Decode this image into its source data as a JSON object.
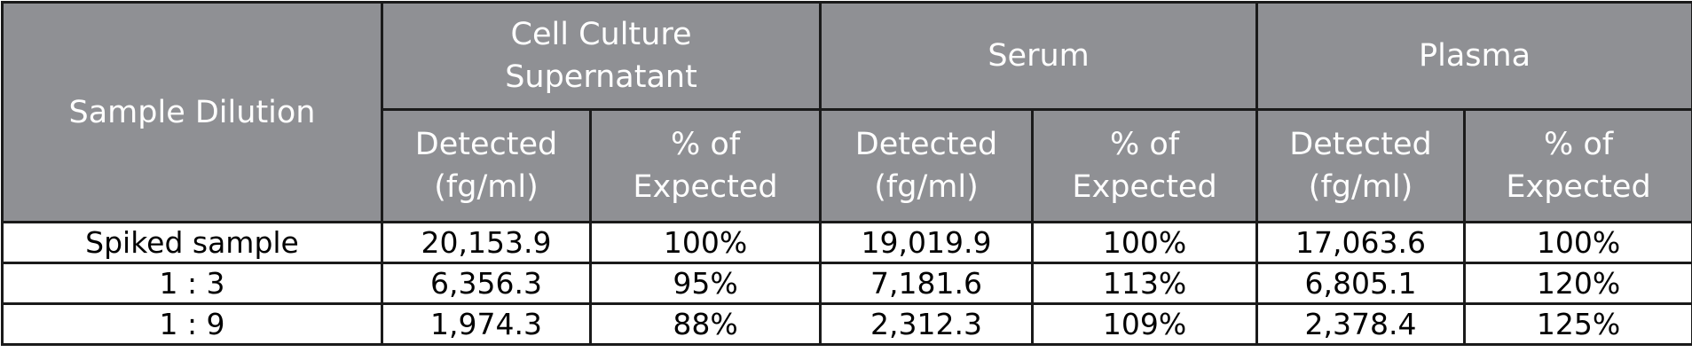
{
  "table": {
    "corner": "Sample Dilution",
    "groups": [
      [
        "Cell Culture",
        "Supernatant"
      ],
      [
        "Serum"
      ],
      [
        "Plasma"
      ]
    ],
    "subheaders": [
      [
        [
          "Detected",
          "(fg/ml)"
        ],
        [
          "% of",
          "Expected"
        ]
      ],
      [
        [
          "Detected",
          "(fg/ml)"
        ],
        [
          "% of",
          "Expected"
        ]
      ],
      [
        [
          "Detected",
          "(fg/ml)"
        ],
        [
          "% of",
          "Expected"
        ]
      ]
    ],
    "rows": [
      [
        "Spiked sample",
        "20,153.9",
        "100%",
        "19,019.9",
        "100%",
        "17,063.6",
        "100%"
      ],
      [
        "1 : 3",
        "6,356.3",
        "95%",
        "7,181.6",
        "113%",
        "6,805.1",
        "120%"
      ],
      [
        "1 : 9",
        "1,974.3",
        "88%",
        "2,312.3",
        "109%",
        "2,378.4",
        "125%"
      ]
    ]
  }
}
